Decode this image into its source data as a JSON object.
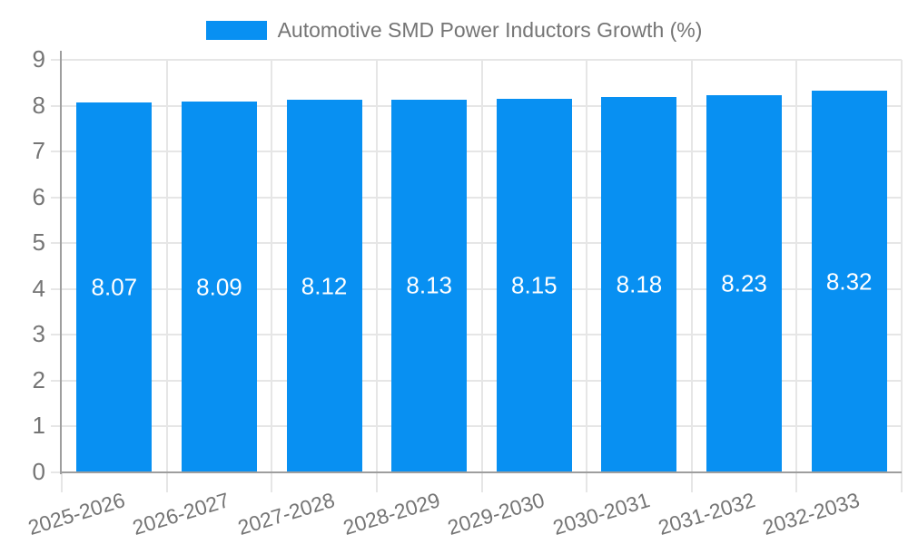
{
  "legend": {
    "items": [
      {
        "label": "Automotive SMD Power Inductors Growth (%)"
      }
    ]
  },
  "colors": {
    "bar": "#0890f2",
    "legend_text": "#757575",
    "axis_text": "#757575",
    "value_label_text": "#ffffff",
    "grid_line": "#e6e6e6",
    "axis_line": "#9e9e9e",
    "background": "#ffffff"
  },
  "chart_data": {
    "type": "bar",
    "title": "Automotive SMD Power Inductors Growth (%)",
    "categories": [
      "2025-2026",
      "2026-2027",
      "2027-2028",
      "2028-2029",
      "2029-2030",
      "2030-2031",
      "2031-2032",
      "2032-2033"
    ],
    "values": [
      8.07,
      8.09,
      8.12,
      8.13,
      8.15,
      8.18,
      8.23,
      8.32
    ],
    "value_labels": [
      "8.07",
      "8.09",
      "8.12",
      "8.13",
      "8.15",
      "8.18",
      "8.23",
      "8.32"
    ],
    "xlabel": "",
    "ylabel": "",
    "ylim": [
      0,
      9
    ],
    "yticks": [
      0,
      1,
      2,
      3,
      4,
      5,
      6,
      7,
      8,
      9
    ],
    "grid": true,
    "legend_position": "top-center",
    "value_labels_position": "bar-center",
    "x_label_rotation_deg": -17
  }
}
